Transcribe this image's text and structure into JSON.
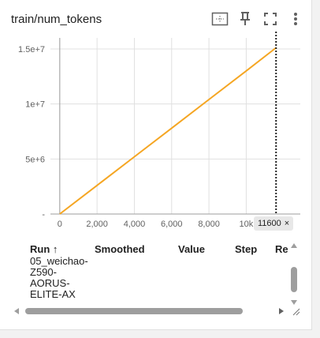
{
  "card": {
    "title": "train/num_tokens",
    "toolbar_icons": [
      "fit-domain-icon",
      "pin-icon",
      "fullscreen-icon",
      "more-vert-icon"
    ]
  },
  "colors": {
    "series": "#f5a623",
    "grid": "#e0e0e0",
    "axis": "#9e9e9e",
    "chip_bg": "#e8e8e8"
  },
  "chart_data": {
    "type": "line",
    "title": "train/num_tokens",
    "x_ticks": [
      "0",
      "2,000",
      "4,000",
      "6,000",
      "8,000",
      "10k"
    ],
    "y_ticks": [
      "-",
      "5e+6",
      "1e+7",
      "1.5e+7"
    ],
    "xlim": [
      -500,
      12900
    ],
    "ylim": [
      0,
      16000000
    ],
    "series": [
      {
        "values": [
          [
            0,
            0
          ],
          [
            2000,
            2600000
          ],
          [
            4000,
            5200000
          ],
          [
            6000,
            7800000
          ],
          [
            8000,
            10400000
          ],
          [
            10000,
            13000000
          ],
          [
            11600,
            15100000
          ]
        ]
      }
    ],
    "step_cursor": 11600,
    "grid": true
  },
  "step_chip": {
    "label": "11600",
    "close": "×"
  },
  "table": {
    "columns": [
      "Run",
      "Smoothed",
      "Value",
      "Step",
      "Re"
    ],
    "sort_indicator": "↑",
    "rows": [
      {
        "run": "05_weichao-Z590-AORUS-ELITE-AX"
      }
    ]
  }
}
